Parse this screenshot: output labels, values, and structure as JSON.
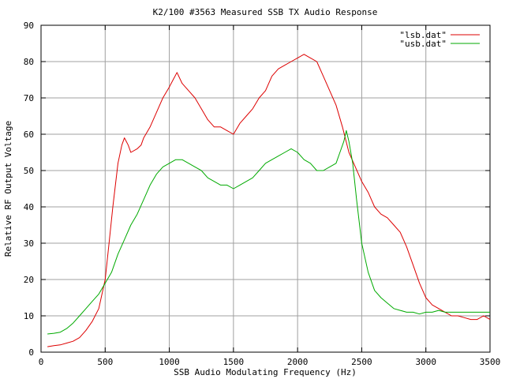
{
  "chart_data": {
    "type": "line",
    "title": "K2/100 #3563 Measured SSB TX Audio Response",
    "xlabel": "SSB Audio Modulating Frequency (Hz)",
    "ylabel": "Relative RF Output Voltage",
    "xlim": [
      0,
      3500
    ],
    "ylim": [
      0,
      90
    ],
    "xticks": [
      0,
      500,
      1000,
      1500,
      2000,
      2500,
      3000,
      3500
    ],
    "yticks": [
      0,
      10,
      20,
      30,
      40,
      50,
      60,
      70,
      80,
      90
    ],
    "grid": true,
    "legend_position": "top-right",
    "series": [
      {
        "name": "\"lsb.dat\"",
        "color": "#dd0000",
        "x": [
          50,
          100,
          150,
          200,
          250,
          300,
          350,
          400,
          450,
          500,
          530,
          560,
          600,
          630,
          650,
          680,
          700,
          750,
          780,
          800,
          850,
          900,
          950,
          1000,
          1030,
          1060,
          1100,
          1150,
          1200,
          1250,
          1300,
          1350,
          1400,
          1450,
          1500,
          1550,
          1600,
          1650,
          1700,
          1750,
          1800,
          1850,
          1900,
          1950,
          2000,
          2050,
          2100,
          2150,
          2200,
          2250,
          2300,
          2350,
          2400,
          2450,
          2500,
          2550,
          2600,
          2650,
          2700,
          2750,
          2800,
          2850,
          2900,
          2950,
          3000,
          3050,
          3100,
          3150,
          3200,
          3250,
          3300,
          3350,
          3400,
          3450,
          3500
        ],
        "y": [
          1.5,
          1.8,
          2,
          2.5,
          3,
          4,
          6,
          8.5,
          12,
          20,
          30,
          40,
          52,
          57,
          59,
          57,
          55,
          56,
          57,
          59,
          62,
          66,
          70,
          73,
          75,
          77,
          74,
          72,
          70,
          67,
          64,
          62,
          62,
          61,
          60,
          63,
          65,
          67,
          70,
          72,
          76,
          78,
          79,
          80,
          81,
          82,
          81,
          80,
          76,
          72,
          68,
          62,
          55,
          51,
          47,
          44,
          40,
          38,
          37,
          35,
          33,
          29,
          24,
          19,
          15,
          13,
          12,
          11,
          10,
          10,
          9.5,
          9,
          9,
          10,
          9
        ]
      },
      {
        "name": "\"usb.dat\"",
        "color": "#00aa00",
        "x": [
          50,
          100,
          150,
          200,
          250,
          300,
          350,
          400,
          450,
          500,
          550,
          600,
          650,
          700,
          750,
          800,
          850,
          900,
          950,
          1000,
          1050,
          1100,
          1150,
          1200,
          1250,
          1300,
          1350,
          1400,
          1450,
          1500,
          1550,
          1600,
          1650,
          1700,
          1750,
          1800,
          1850,
          1900,
          1950,
          2000,
          2050,
          2100,
          2150,
          2200,
          2250,
          2300,
          2330,
          2360,
          2380,
          2400,
          2430,
          2460,
          2500,
          2550,
          2600,
          2650,
          2700,
          2750,
          2800,
          2850,
          2900,
          2950,
          3000,
          3050,
          3100,
          3150,
          3200,
          3250,
          3300,
          3350,
          3400,
          3450,
          3500
        ],
        "y": [
          5,
          5.2,
          5.5,
          6.5,
          8,
          10,
          12,
          14,
          16,
          19,
          22,
          27,
          31,
          35,
          38,
          42,
          46,
          49,
          51,
          52,
          53,
          53,
          52,
          51,
          50,
          48,
          47,
          46,
          46,
          45,
          46,
          47,
          48,
          50,
          52,
          53,
          54,
          55,
          56,
          55,
          53,
          52,
          50,
          50,
          51,
          52,
          55,
          58,
          61,
          58,
          52,
          42,
          30,
          22,
          17,
          15,
          13.5,
          12,
          11.5,
          11,
          11,
          10.5,
          11,
          11,
          11.5,
          11,
          11,
          11,
          11,
          11,
          11,
          11,
          11
        ]
      }
    ]
  }
}
